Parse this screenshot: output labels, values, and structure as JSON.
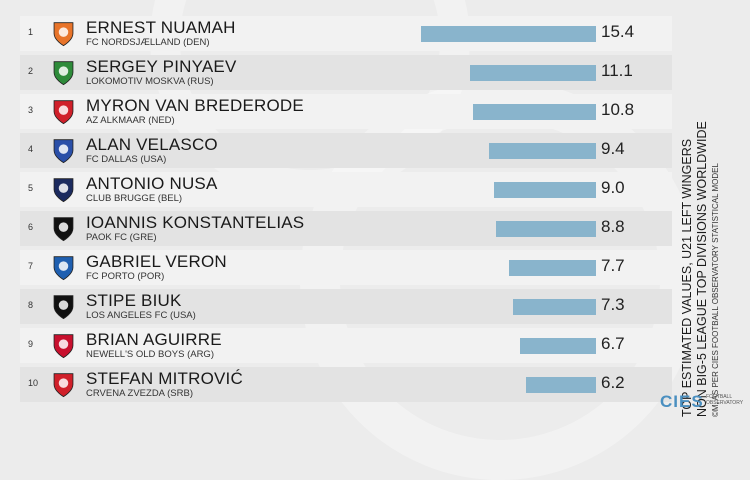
{
  "chart_data": {
    "type": "bar",
    "orientation": "horizontal",
    "title": "TOP ESTIMATED VALUES, U21 LEFT WINGERS NON BIG-5 LEAGUE TOP DIVISIONS WORLDWIDE",
    "source": "©M, AS PER CIES FOOTBALL OBSERVATORY STATISTICAL MODEL",
    "categories": [
      "ERNEST NUAMAH",
      "SERGEY PINYAEV",
      "MYRON VAN BREDERODE",
      "ALAN VELASCO",
      "ANTONIO NUSA",
      "IOANNIS KONSTANTELIAS",
      "GABRIEL VERON",
      "STIPE BIUK",
      "BRIAN AGUIRRE",
      "STEFAN MITROVIĆ"
    ],
    "values": [
      15.4,
      11.1,
      10.8,
      9.4,
      9.0,
      8.8,
      7.7,
      7.3,
      6.7,
      6.2
    ],
    "value_labels": [
      "15.4",
      "11.1",
      "10.8",
      "9.4",
      "9.0",
      "8.8",
      "7.7",
      "7.3",
      "6.7",
      "6.2"
    ],
    "bar_color": "#89b4cc",
    "rows": [
      {
        "rank": "1",
        "name": "ERNEST NUAMAH",
        "club": "FC NORDSJÆLLAND (DEN)",
        "logo": "nordsjaelland-crest-icon",
        "logo_color": "#e8742a"
      },
      {
        "rank": "2",
        "name": "SERGEY PINYAEV",
        "club": "LOKOMOTIV MOSKVA (RUS)",
        "logo": "lokomotiv-crest-icon",
        "logo_color": "#2e8b3a"
      },
      {
        "rank": "3",
        "name": "MYRON VAN BREDERODE",
        "club": "AZ ALKMAAR (NED)",
        "logo": "az-alkmaar-crest-icon",
        "logo_color": "#d0202a"
      },
      {
        "rank": "4",
        "name": "ALAN VELASCO",
        "club": "FC DALLAS (USA)",
        "logo": "fc-dallas-crest-icon",
        "logo_color": "#2a4fa8"
      },
      {
        "rank": "5",
        "name": "ANTONIO NUSA",
        "club": "CLUB BRUGGE (BEL)",
        "logo": "club-brugge-crest-icon",
        "logo_color": "#1b2a5e"
      },
      {
        "rank": "6",
        "name": "IOANNIS KONSTANTELIAS",
        "club": "PAOK FC (GRE)",
        "logo": "paok-crest-icon",
        "logo_color": "#111111"
      },
      {
        "rank": "7",
        "name": "GABRIEL VERON",
        "club": "FC PORTO (POR)",
        "logo": "fc-porto-crest-icon",
        "logo_color": "#1f5fb0"
      },
      {
        "rank": "8",
        "name": "STIPE BIUK",
        "club": "LOS ANGELES FC (USA)",
        "logo": "lafc-crest-icon",
        "logo_color": "#111111"
      },
      {
        "rank": "9",
        "name": "BRIAN AGUIRRE",
        "club": "NEWELL'S OLD BOYS (ARG)",
        "logo": "newells-crest-icon",
        "logo_color": "#c8102e"
      },
      {
        "rank": "10",
        "name": "STEFAN MITROVIĆ",
        "club": "CRVENA ZVEZDA (SRB)",
        "logo": "crvena-zvezda-crest-icon",
        "logo_color": "#d0202a"
      }
    ]
  },
  "side": {
    "line1": "TOP ESTIMATED VALUES, U21 LEFT WINGERS",
    "line2": "NON BIG-5 LEAGUE TOP DIVISIONS WORLDWIDE",
    "line3": "©M, AS PER CIES FOOTBALL OBSERVATORY STATISTICAL MODEL"
  },
  "brand": {
    "logo_text": "CIES",
    "sub_text": "FOOTBALL OBSERVATORY"
  }
}
